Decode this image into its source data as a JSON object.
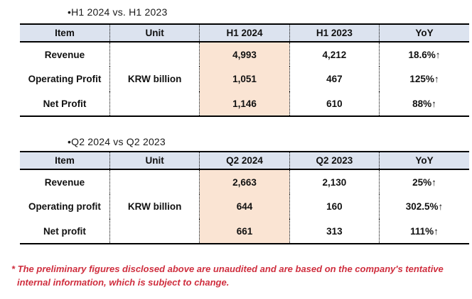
{
  "colors": {
    "header_bg": "#dce3ef",
    "highlight_bg": "#fae4d3",
    "border": "#000000",
    "text": "#111111",
    "footnote_red": "#cf2e3e"
  },
  "sections": [
    {
      "title": "•H1 2024 vs. H1 2023",
      "table": {
        "headers": [
          "Item",
          "Unit",
          "H1 2024",
          "H1 2023",
          "YoY"
        ],
        "unit_value": "KRW billion",
        "rows": [
          {
            "item": "Revenue",
            "current": "4,993",
            "previous": "4,212",
            "yoy": "18.6%↑"
          },
          {
            "item": "Operating Profit",
            "current": "1,051",
            "previous": "467",
            "yoy": "125%↑"
          },
          {
            "item": "Net Profit",
            "current": "1,146",
            "previous": "610",
            "yoy": "88%↑"
          }
        ]
      }
    },
    {
      "title": "•Q2 2024 vs Q2 2023",
      "table": {
        "headers": [
          "Item",
          "Unit",
          "Q2 2024",
          "Q2 2023",
          "YoY"
        ],
        "unit_value": "KRW billion",
        "rows": [
          {
            "item": "Revenue",
            "current": "2,663",
            "previous": "2,130",
            "yoy": "25%↑"
          },
          {
            "item": "Operating profit",
            "current": "644",
            "previous": "160",
            "yoy": "302.5%↑"
          },
          {
            "item": "Net profit",
            "current": "661",
            "previous": "313",
            "yoy": "111%↑"
          }
        ]
      }
    }
  ],
  "footnote": "* The preliminary figures disclosed above are unaudited and are based on the company's tentative internal information, which is subject to change."
}
